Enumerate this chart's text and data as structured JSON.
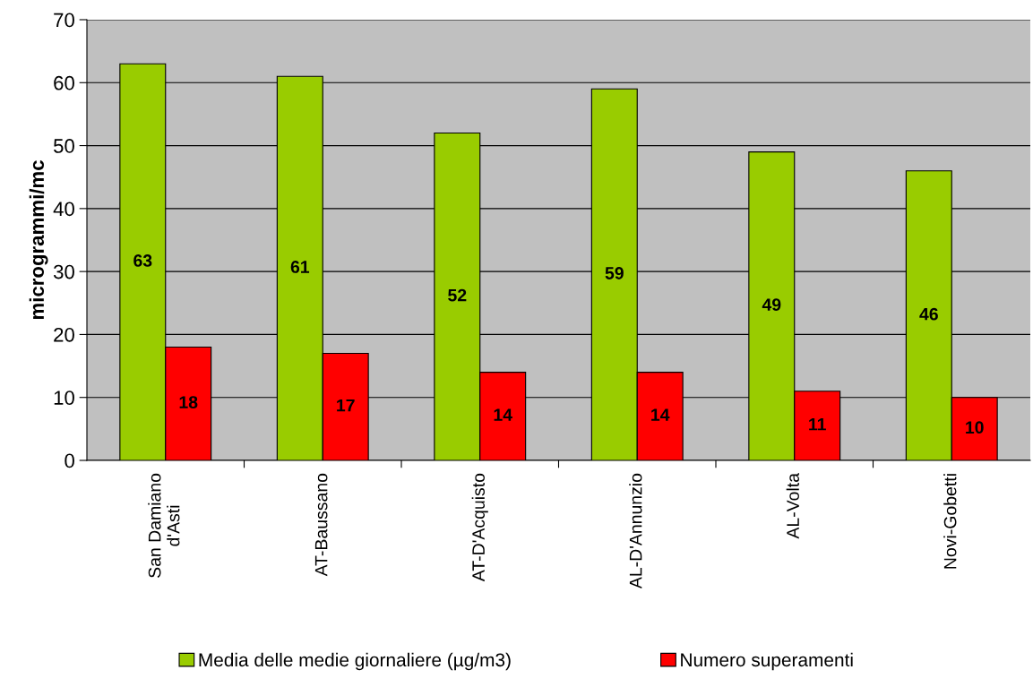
{
  "chart_data": {
    "type": "bar",
    "ylabel": "microgrammi/mc",
    "categories": [
      "San Damiano\nd'Asti",
      "AT-Baussano",
      "AT-D'Acquisto",
      "AL-D'Annunzio",
      "AL-Volta",
      "Novi-Gobetti"
    ],
    "series": [
      {
        "name": "Media delle medie giornaliere (µg/m3)",
        "color": "#99cc00",
        "values": [
          63,
          61,
          52,
          59,
          49,
          46
        ]
      },
      {
        "name": "Numero superamenti",
        "color": "#ff0000",
        "values": [
          18,
          17,
          14,
          14,
          11,
          10
        ]
      }
    ],
    "ylim": [
      0,
      70
    ],
    "yticks": [
      0,
      10,
      20,
      30,
      40,
      50,
      60,
      70
    ],
    "grid": "y",
    "legend": "bottom",
    "data_labels": true
  }
}
